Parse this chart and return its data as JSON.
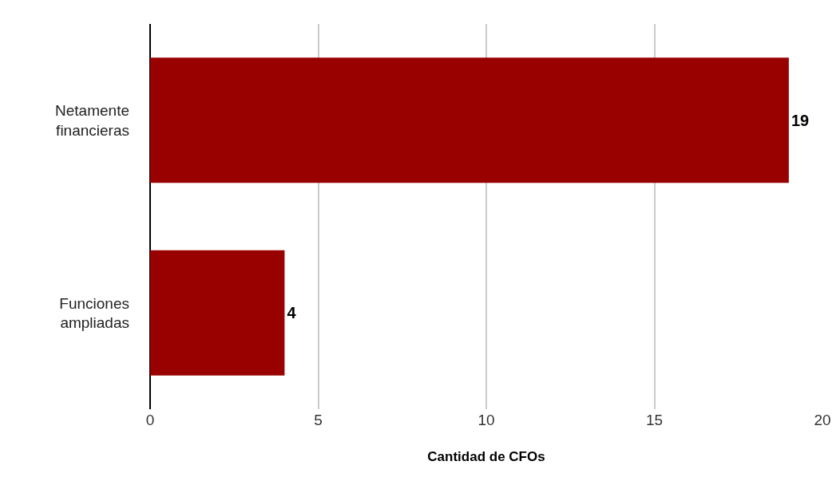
{
  "chart_data": {
    "type": "bar",
    "orientation": "horizontal",
    "categories": [
      "Netamente financieras",
      "Funciones ampliadas"
    ],
    "values": [
      19,
      4
    ],
    "color": "#990000",
    "xlabel": "Cantidad de CFOs",
    "xlim": [
      0,
      20
    ],
    "xticks": [
      0,
      5,
      10,
      15,
      20
    ],
    "grid": "x",
    "data_labels": true
  }
}
